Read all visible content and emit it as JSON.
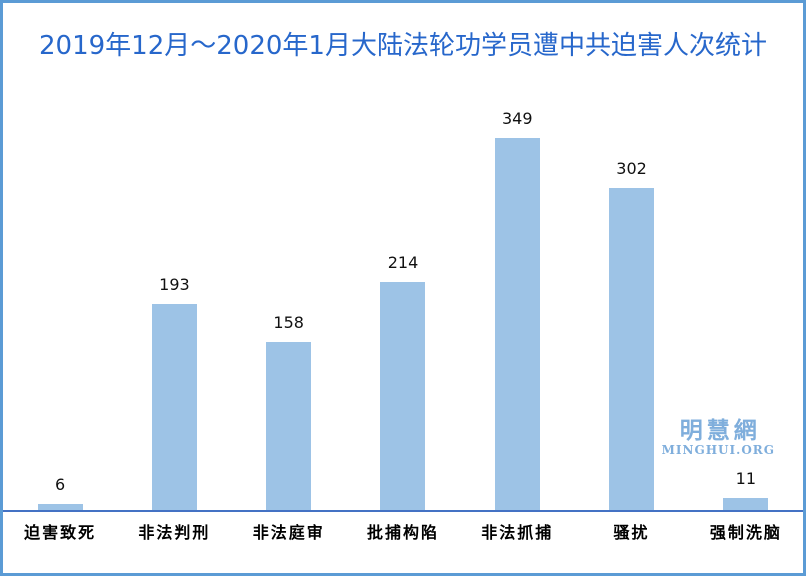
{
  "window": {
    "border_color": "#5B9BD5",
    "background": "#FFFFFF"
  },
  "chart_data": {
    "type": "bar",
    "title": "2019年12月～2020年1月大陆法轮功学员遭中共迫害人次统计",
    "categories": [
      "迫害致死",
      "非法判刑",
      "非法庭审",
      "批捕构陷",
      "非法抓捕",
      "骚扰",
      "强制洗脑"
    ],
    "values": [
      6,
      193,
      158,
      214,
      349,
      302,
      11
    ],
    "xlabel": "",
    "ylabel": "",
    "grid": false,
    "legend": false,
    "value_labels_shown": true,
    "bar_color": "#9DC3E6",
    "axis_line_color": "#4472C4",
    "title_color": "#2767CB",
    "value_label_color": "#111111",
    "category_label_color": "#000000"
  },
  "watermark": {
    "cjk": "明慧網",
    "latin": "MINGHUI.ORG",
    "color": "#7FAEDC"
  }
}
